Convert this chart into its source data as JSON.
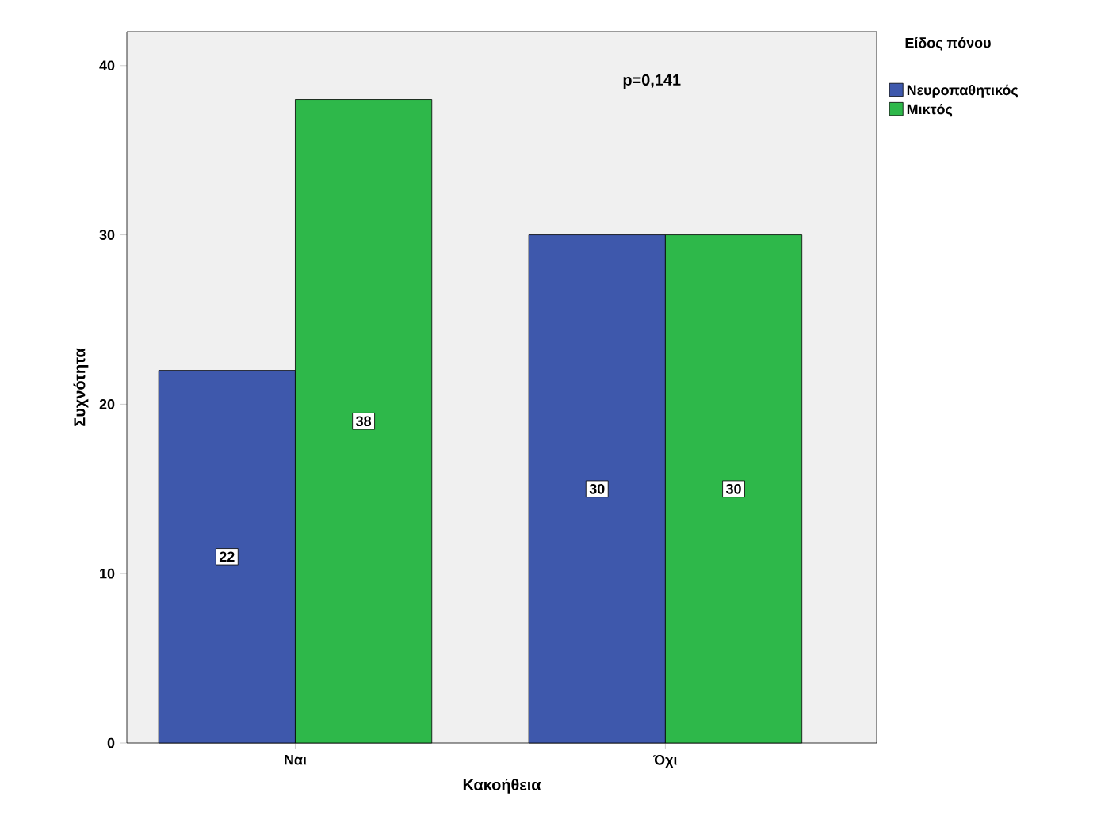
{
  "chart_data": {
    "type": "bar",
    "xlabel": "Κακοήθεια",
    "ylabel": "Συχνότητα",
    "legend_title": "Είδος πόνου",
    "categories": [
      "Ναι",
      "Όχι"
    ],
    "series": [
      {
        "name": "Νευροπαθητικός",
        "color": "#3e58ac",
        "values": [
          22,
          30
        ]
      },
      {
        "name": "Μικτός",
        "color": "#2eb84a",
        "values": [
          38,
          30
        ]
      }
    ],
    "ylim": [
      0,
      42
    ],
    "yticks": [
      0,
      10,
      20,
      30,
      40
    ],
    "data_labels": true,
    "legend": "top right",
    "grid": false,
    "annotations": [
      "p=0,141"
    ]
  }
}
